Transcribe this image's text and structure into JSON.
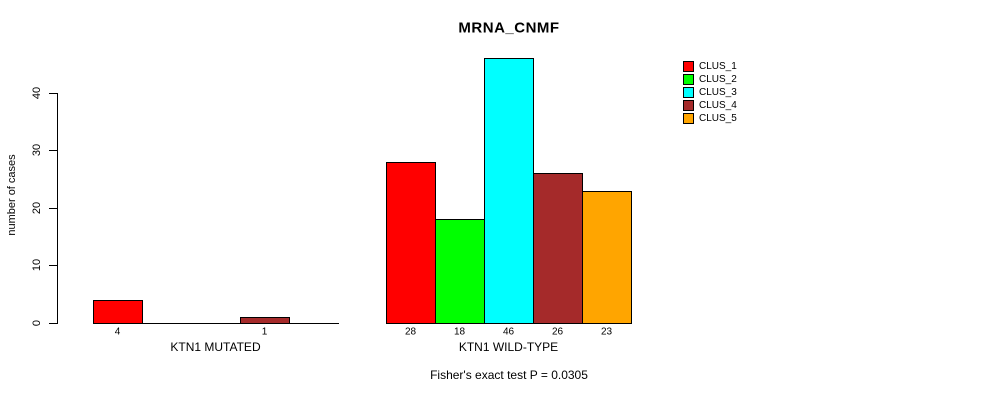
{
  "title": "MRNA_CNMF",
  "caption": "Fisher's exact test P = 0.0305",
  "y_axis": {
    "label": "number of cases",
    "ticks": [
      0,
      10,
      20,
      30,
      40
    ]
  },
  "legend": {
    "items": [
      {
        "label": "CLUS_1",
        "color": "#FF0000"
      },
      {
        "label": "CLUS_2",
        "color": "#00FF00"
      },
      {
        "label": "CLUS_3",
        "color": "#00FFFF"
      },
      {
        "label": "CLUS_4",
        "color": "#A52A2A"
      },
      {
        "label": "CLUS_5",
        "color": "#FFA500"
      }
    ]
  },
  "chart_data": {
    "type": "bar",
    "title": "MRNA_CNMF",
    "xlabel": "",
    "ylabel": "number of cases",
    "ylim": [
      0,
      46
    ],
    "yticks": [
      0,
      10,
      20,
      30,
      40
    ],
    "grid": false,
    "legend_position": "top-right",
    "series_names": [
      "CLUS_1",
      "CLUS_2",
      "CLUS_3",
      "CLUS_4",
      "CLUS_5"
    ],
    "colors": [
      "#FF0000",
      "#00FF00",
      "#00FFFF",
      "#A52A2A",
      "#FFA500"
    ],
    "groups": [
      {
        "label": "KTN1 MUTATED",
        "values": [
          4,
          0,
          0,
          1,
          0
        ],
        "value_labels": [
          "4",
          "",
          "",
          "1",
          ""
        ]
      },
      {
        "label": "KTN1 WILD-TYPE",
        "values": [
          28,
          18,
          46,
          26,
          23
        ],
        "value_labels": [
          "28",
          "18",
          "46",
          "26",
          "23"
        ]
      }
    ],
    "annotation": "Fisher's exact test P = 0.0305"
  }
}
